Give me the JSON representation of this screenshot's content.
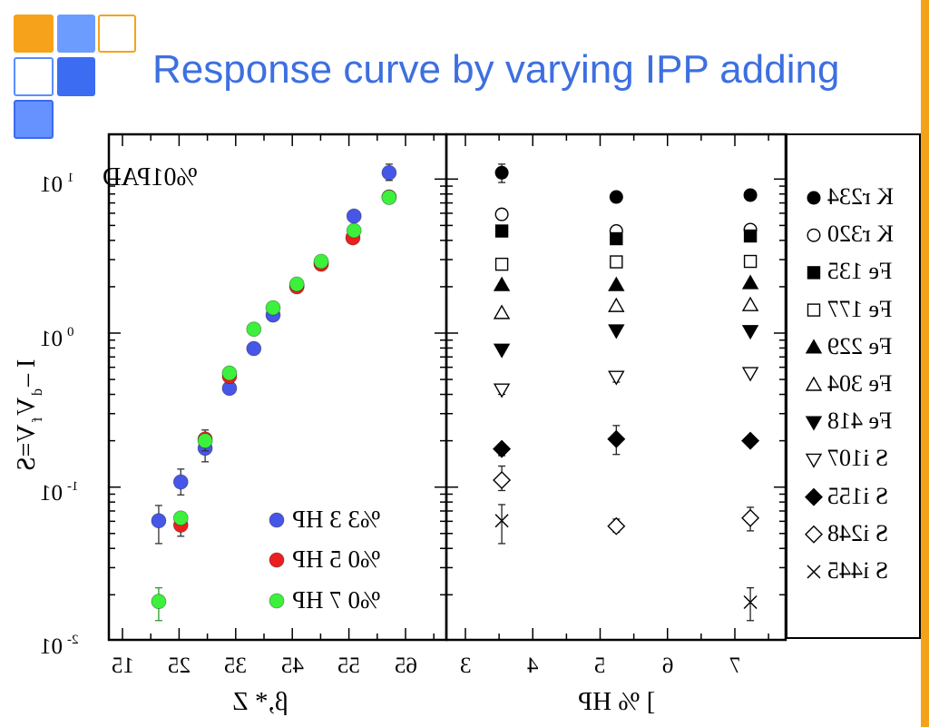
{
  "slide": {
    "title": "Response curve by varying IPP adding"
  },
  "theme": {
    "title_color": "#3d6fe0",
    "accent_orange": "#f6a11a",
    "logo_blue_light": "#6d9cff",
    "logo_blue_dark": "#3c6cf2"
  },
  "chart_data": [
    {
      "type": "scatter",
      "annotation": "DAP10%",
      "ylabel_parts": [
        "S=V",
        "f",
        "V",
        "d",
        "– I"
      ],
      "xlabel": "Z *,β",
      "y_scale": "log",
      "ylim": [
        0.01,
        19.5
      ],
      "xlim": [
        50.8,
        56.8
      ],
      "y_ticks": [
        {
          "base": "10",
          "exp": "1"
        },
        {
          "base": "10",
          "exp": "0"
        },
        {
          "base": "10",
          "exp": "-1"
        },
        {
          "base": "10",
          "exp": "-2"
        }
      ],
      "x_ticks": [
        "51",
        "52",
        "53",
        "54",
        "55",
        "56"
      ],
      "legend_position": "bottom-right",
      "grid": false,
      "series": [
        {
          "name": "PH 3 3%",
          "color": "#4656e6",
          "points": [
            {
              "x": 51.64,
              "y": 0.0605,
              "yerr": [
                0.043,
                0.076
              ]
            },
            {
              "x": 52.03,
              "y": 0.108,
              "yerr": [
                0.089,
                0.131
              ]
            },
            {
              "x": 52.46,
              "y": 0.179,
              "yerr": [
                0.146,
                0.205
              ]
            },
            {
              "x": 52.89,
              "y": 0.438
            },
            {
              "x": 53.32,
              "y": 0.794
            },
            {
              "x": 53.66,
              "y": 1.31
            },
            {
              "x": 54.08,
              "y": 2.02
            },
            {
              "x": 54.51,
              "y": 2.84
            },
            {
              "x": 55.09,
              "y": 5.75
            },
            {
              "x": 55.71,
              "y": 11.0,
              "yerr": [
                9.8,
                12.5
              ]
            }
          ]
        },
        {
          "name": "PH 5 0%",
          "color": "#ec1f1f",
          "points": [
            {
              "x": 52.03,
              "y": 0.0567,
              "yerr": [
                0.048,
                0.062
              ]
            },
            {
              "x": 52.46,
              "y": 0.205,
              "yerr": [
                0.172,
                0.235
              ]
            },
            {
              "x": 52.89,
              "y": 0.524
            },
            {
              "x": 54.08,
              "y": 2.0
            },
            {
              "x": 54.51,
              "y": 2.8
            },
            {
              "x": 55.07,
              "y": 4.16
            },
            {
              "x": 55.71,
              "y": 7.65
            }
          ]
        },
        {
          "name": "PH 7 0%",
          "color": "#3cf03c",
          "points": [
            {
              "x": 51.64,
              "y": 0.0181,
              "yerr": [
                0.0136,
                0.0222
              ]
            },
            {
              "x": 52.03,
              "y": 0.063
            },
            {
              "x": 52.46,
              "y": 0.2
            },
            {
              "x": 52.89,
              "y": 0.55
            },
            {
              "x": 53.32,
              "y": 1.06
            },
            {
              "x": 53.66,
              "y": 1.46
            },
            {
              "x": 54.08,
              "y": 2.08
            },
            {
              "x": 54.51,
              "y": 2.92
            },
            {
              "x": 55.09,
              "y": 4.63
            },
            {
              "x": 55.71,
              "y": 7.6
            }
          ]
        }
      ]
    },
    {
      "type": "scatter",
      "xlabel": "PH % ]",
      "y_scale": "log",
      "ylim": [
        0.01,
        19.5
      ],
      "xlim": [
        2.7,
        7.75
      ],
      "x_ticks": [
        "3",
        "4",
        "5",
        "6",
        "7"
      ],
      "legend_position": "outside-right",
      "grid": false,
      "series": [
        {
          "name": "432r K",
          "marker": "filled-circle",
          "points": [
            {
              "x": 3.54,
              "y": 11.0,
              "yerr": [
                9.5,
                12.5
              ]
            },
            {
              "x": 5.24,
              "y": 7.65
            },
            {
              "x": 7.23,
              "y": 7.87
            }
          ]
        },
        {
          "name": "023r K",
          "marker": "open-circle",
          "points": [
            {
              "x": 3.54,
              "y": 5.9
            },
            {
              "x": 5.24,
              "y": 4.6
            },
            {
              "x": 7.23,
              "y": 4.7
            }
          ]
        },
        {
          "name": "531 eF",
          "marker": "filled-square",
          "points": [
            {
              "x": 3.54,
              "y": 4.6
            },
            {
              "x": 5.24,
              "y": 4.1
            },
            {
              "x": 7.23,
              "y": 4.27
            }
          ]
        },
        {
          "name": "771 eF",
          "marker": "open-square",
          "points": [
            {
              "x": 3.54,
              "y": 2.8
            },
            {
              "x": 5.24,
              "y": 2.9
            },
            {
              "x": 7.23,
              "y": 2.92
            }
          ]
        },
        {
          "name": "922 eF",
          "marker": "filled-triangle-up",
          "points": [
            {
              "x": 3.54,
              "y": 2.05
            },
            {
              "x": 5.24,
              "y": 2.05
            },
            {
              "x": 7.23,
              "y": 2.11
            }
          ]
        },
        {
          "name": "403 eF",
          "marker": "open-triangle-up",
          "points": [
            {
              "x": 3.54,
              "y": 1.35
            },
            {
              "x": 5.24,
              "y": 1.5
            },
            {
              "x": 7.23,
              "y": 1.52
            }
          ]
        },
        {
          "name": "814 eF",
          "marker": "filled-triangle-down",
          "points": [
            {
              "x": 3.54,
              "y": 0.78
            },
            {
              "x": 5.24,
              "y": 1.04
            },
            {
              "x": 7.23,
              "y": 1.03
            }
          ]
        },
        {
          "name": "701i S",
          "marker": "open-triangle-down",
          "points": [
            {
              "x": 3.54,
              "y": 0.43,
              "yerr": [
                0.4,
                0.46
              ]
            },
            {
              "x": 5.24,
              "y": 0.52,
              "yerr": [
                0.48,
                0.56
              ]
            },
            {
              "x": 7.23,
              "y": 0.55
            }
          ]
        },
        {
          "name": "551i S",
          "marker": "filled-diamond",
          "points": [
            {
              "x": 3.54,
              "y": 0.177,
              "yerr": [
                0.16,
                0.19
              ]
            },
            {
              "x": 5.24,
              "y": 0.205,
              "yerr": [
                0.163,
                0.251
              ]
            },
            {
              "x": 7.23,
              "y": 0.2
            }
          ]
        },
        {
          "name": "842i S",
          "marker": "open-diamond",
          "points": [
            {
              "x": 3.54,
              "y": 0.111,
              "yerr": [
                0.095,
                0.137
              ]
            },
            {
              "x": 5.24,
              "y": 0.0558,
              "yerr": [
                0.051,
                0.062
              ]
            },
            {
              "x": 7.23,
              "y": 0.063,
              "yerr": [
                0.052,
                0.074
              ]
            }
          ]
        },
        {
          "name": "544i S",
          "marker": "cross",
          "points": [
            {
              "x": 3.54,
              "y": 0.0605,
              "yerr": [
                0.043,
                0.077
              ]
            },
            {
              "x": 7.23,
              "y": 0.0179,
              "yerr": [
                0.0136,
                0.0222
              ]
            }
          ]
        }
      ]
    }
  ]
}
